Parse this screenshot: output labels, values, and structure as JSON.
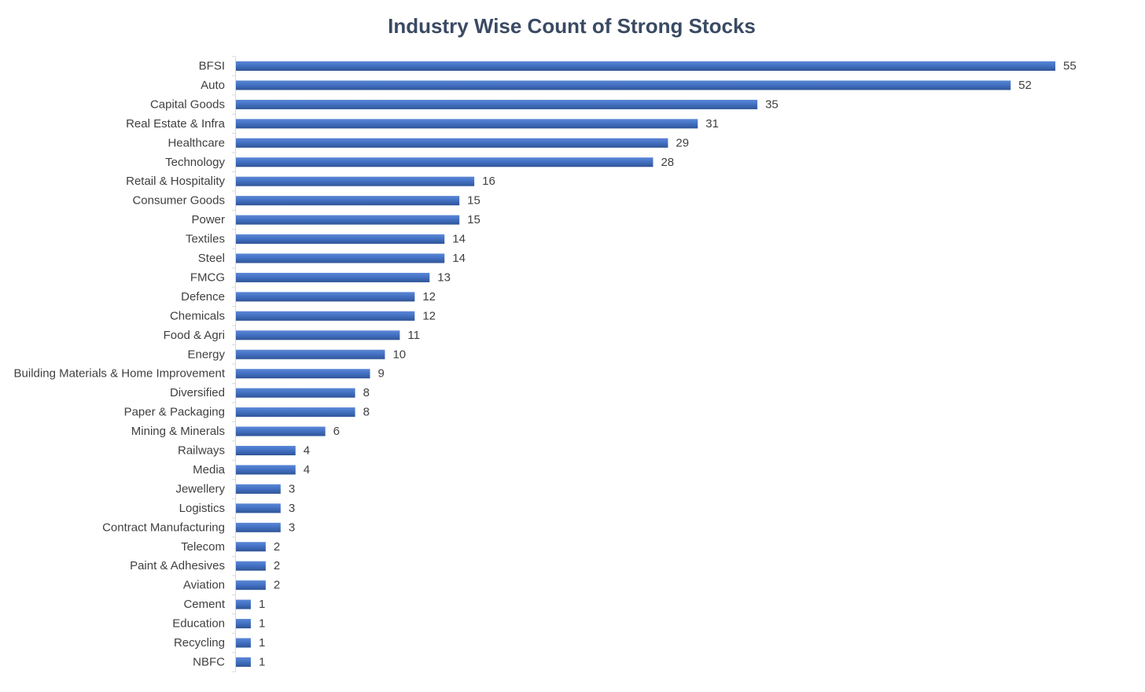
{
  "chart_data": {
    "type": "bar",
    "orientation": "horizontal",
    "title": "Industry Wise Count of Strong Stocks",
    "xlabel": "",
    "ylabel": "",
    "xlim": [
      0,
      55
    ],
    "grid": false,
    "legend": "none",
    "data_labels": true,
    "bar_color": "#4472C4",
    "bar_color_dark": "#2F5597",
    "bar_color_light": "#5B87D6",
    "categories": [
      "BFSI",
      "Auto",
      "Capital Goods",
      "Real Estate & Infra",
      "Healthcare",
      "Technology",
      "Retail & Hospitality",
      "Consumer Goods",
      "Power",
      "Textiles",
      "Steel",
      "FMCG",
      "Defence",
      "Chemicals",
      "Food & Agri",
      "Energy",
      "Building Materials & Home Improvement",
      "Diversified",
      "Paper & Packaging",
      "Mining & Minerals",
      "Railways",
      "Media",
      "Jewellery",
      "Logistics",
      "Contract Manufacturing",
      "Telecom",
      "Paint & Adhesives",
      "Aviation",
      "Cement",
      "Education",
      "Recycling",
      "NBFC"
    ],
    "values": [
      55,
      52,
      35,
      31,
      29,
      28,
      16,
      15,
      15,
      14,
      14,
      13,
      12,
      12,
      11,
      10,
      9,
      8,
      8,
      6,
      4,
      4,
      3,
      3,
      3,
      2,
      2,
      2,
      1,
      1,
      1,
      1
    ]
  }
}
